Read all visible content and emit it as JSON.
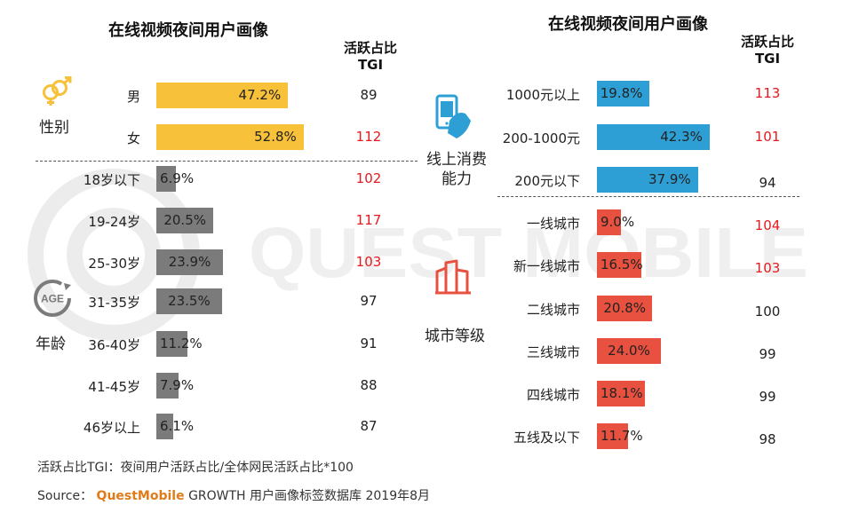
{
  "colors": {
    "gender": "#f8c13a",
    "age": "#7b7b7b",
    "consumption": "#2e9fd4",
    "city": "#e8513f",
    "tgi_high": "#e5191e",
    "tgi_normal": "#222222",
    "brand": "#e07b1a"
  },
  "watermark": {
    "text": "QUEST MOBILE"
  },
  "left_panel": {
    "title": "在线视频夜间用户画像",
    "tgi_header": [
      "活跃占比",
      "TGI"
    ],
    "groups": {
      "gender": {
        "label": "性别",
        "icon": "gender-icon"
      },
      "age": {
        "label": "年龄",
        "icon": "age-badge-icon",
        "badge_text": "AGE"
      }
    }
  },
  "right_panel": {
    "title": "在线视频夜间用户画像",
    "tgi_header": [
      "活跃占比",
      "TGI"
    ],
    "groups": {
      "consumption": {
        "label": [
          "线上消费",
          "能力"
        ],
        "icon": "phone-shopping-icon"
      },
      "city": {
        "label": "城市等级",
        "icon": "city-buildings-icon"
      }
    }
  },
  "chart_data": [
    {
      "type": "bar",
      "orientation": "horizontal",
      "title": "在线视频夜间用户画像",
      "unit": "%",
      "sections": [
        {
          "name": "性别",
          "categories": [
            "男",
            "女"
          ],
          "values": [
            47.2,
            52.8
          ],
          "labels": [
            "47.2%",
            "52.8%"
          ],
          "tgi": [
            89,
            112
          ]
        },
        {
          "name": "年龄",
          "categories": [
            "18岁以下",
            "19-24岁",
            "25-30岁",
            "31-35岁",
            "36-40岁",
            "41-45岁",
            "46岁以上"
          ],
          "values": [
            6.9,
            20.5,
            23.9,
            23.5,
            11.2,
            7.9,
            6.1
          ],
          "labels": [
            "6.9%",
            "20.5%",
            "23.9%",
            "23.5%",
            "11.2%",
            "7.9%",
            "6.1%"
          ],
          "tgi": [
            102,
            117,
            103,
            97,
            91,
            88,
            87
          ]
        }
      ]
    },
    {
      "type": "bar",
      "orientation": "horizontal",
      "title": "在线视频夜间用户画像",
      "unit": "%",
      "sections": [
        {
          "name": "线上消费能力",
          "categories": [
            "1000元以上",
            "200-1000元",
            "200元以下"
          ],
          "values": [
            19.8,
            42.3,
            37.9
          ],
          "labels": [
            "19.8%",
            "42.3%",
            "37.9%"
          ],
          "tgi": [
            113,
            101,
            94
          ]
        },
        {
          "name": "城市等级",
          "categories": [
            "一线城市",
            "新一线城市",
            "二线城市",
            "三线城市",
            "四线城市",
            "五线及以下"
          ],
          "values": [
            9.0,
            16.5,
            20.8,
            24.0,
            18.1,
            11.7
          ],
          "labels": [
            "9.0%",
            "16.5%",
            "20.8%",
            "24.0%",
            "18.1%",
            "11.7%"
          ],
          "tgi": [
            104,
            103,
            100,
            99,
            99,
            98
          ]
        }
      ]
    }
  ],
  "footnote": "活跃占比TGI：夜间用户活跃占比/全体网民活跃占比*100",
  "source": {
    "prefix": "Source：",
    "brand": "QuestMobile",
    "suffix": "GROWTH 用户画像标签数据库 2019年8月"
  }
}
